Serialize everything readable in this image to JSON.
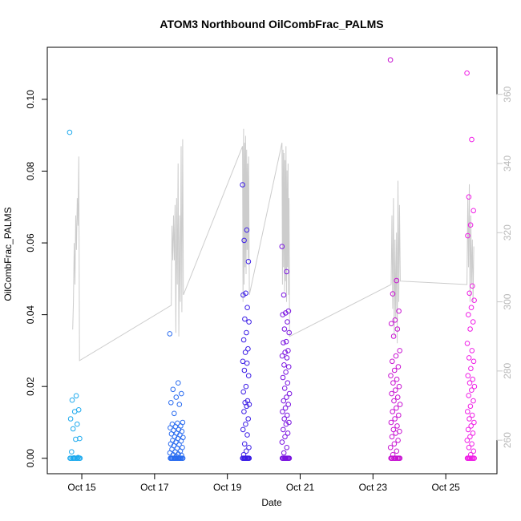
{
  "chart_data": {
    "type": "scatter",
    "title": "ATOM3 Northbound OilCombFrac_PALMS",
    "xlabel": "Date",
    "ylabel": "OilCombFrac_PALMS",
    "xlim": [
      "2017-10-14T01:15",
      "2017-10-26T09:45"
    ],
    "ylim": [
      -0.0043,
      0.1145
    ],
    "x_ticks": [
      {
        "x": "2017-10-15T00:00",
        "label": "Oct 15"
      },
      {
        "x": "2017-10-17T00:00",
        "label": "Oct 17"
      },
      {
        "x": "2017-10-19T00:00",
        "label": "Oct 19"
      },
      {
        "x": "2017-10-21T00:00",
        "label": "Oct 21"
      },
      {
        "x": "2017-10-23T00:00",
        "label": "Oct 23"
      },
      {
        "x": "2017-10-25T00:00",
        "label": "Oct 25"
      }
    ],
    "y_ticks": [
      0.0,
      0.02,
      0.04,
      0.06,
      0.08,
      0.1
    ],
    "y_tick_labels": [
      "0.00",
      "0.02",
      "0.04",
      "0.06",
      "0.08",
      "0.10"
    ],
    "right_axis": {
      "ylim": [
        250.3,
        373.6
      ],
      "ticks": [
        260,
        280,
        300,
        320,
        340,
        360
      ],
      "tick_labels": [
        "260",
        "280",
        "300",
        "320",
        "340",
        "360"
      ],
      "color": "#c8c8c8"
    },
    "grid": false,
    "legend": "none",
    "line_series": {
      "color": "#cccccc",
      "points": [
        [
          "2017-10-14T18:00",
          292
        ],
        [
          "2017-10-14T18:30",
          300
        ],
        [
          "2017-10-14T19:00",
          317
        ],
        [
          "2017-10-14T19:30",
          305
        ],
        [
          "2017-10-14T20:00",
          325
        ],
        [
          "2017-10-14T20:30",
          315
        ],
        [
          "2017-10-14T21:00",
          330
        ],
        [
          "2017-10-14T21:30",
          322
        ],
        [
          "2017-10-14T22:00",
          342
        ],
        [
          "2017-10-14T22:30",
          283
        ],
        [
          "2017-10-17T11:00",
          299
        ],
        [
          "2017-10-17T11:30",
          322
        ],
        [
          "2017-10-17T12:00",
          312
        ],
        [
          "2017-10-17T12:30",
          325
        ],
        [
          "2017-10-17T13:00",
          312
        ],
        [
          "2017-10-17T13:30",
          328
        ],
        [
          "2017-10-17T14:00",
          291
        ],
        [
          "2017-10-17T14:30",
          330
        ],
        [
          "2017-10-17T15:00",
          305
        ],
        [
          "2017-10-17T15:30",
          340
        ],
        [
          "2017-10-17T16:00",
          290
        ],
        [
          "2017-10-17T16:30",
          325
        ],
        [
          "2017-10-17T17:00",
          300
        ],
        [
          "2017-10-17T17:30",
          345
        ],
        [
          "2017-10-17T18:00",
          297
        ],
        [
          "2017-10-17T18:30",
          347
        ],
        [
          "2017-10-17T19:00",
          302
        ],
        [
          "2017-10-19T10:00",
          345
        ],
        [
          "2017-10-19T10:20",
          300
        ],
        [
          "2017-10-19T10:40",
          350
        ],
        [
          "2017-10-19T11:00",
          305
        ],
        [
          "2017-10-19T11:20",
          346
        ],
        [
          "2017-10-19T11:40",
          310
        ],
        [
          "2017-10-19T12:00",
          348
        ],
        [
          "2017-10-19T12:20",
          308
        ],
        [
          "2017-10-19T12:40",
          344
        ],
        [
          "2017-10-19T13:00",
          315
        ],
        [
          "2017-10-19T13:20",
          340
        ],
        [
          "2017-10-19T13:40",
          312
        ],
        [
          "2017-10-19T14:00",
          342
        ],
        [
          "2017-10-19T14:30",
          302
        ],
        [
          "2017-10-20T12:00",
          346
        ],
        [
          "2017-10-20T12:20",
          305
        ],
        [
          "2017-10-20T12:40",
          344
        ],
        [
          "2017-10-20T13:00",
          310
        ],
        [
          "2017-10-20T13:20",
          343
        ],
        [
          "2017-10-20T13:40",
          303
        ],
        [
          "2017-10-20T14:00",
          341
        ],
        [
          "2017-10-20T14:20",
          306
        ],
        [
          "2017-10-20T14:40",
          345
        ],
        [
          "2017-10-20T15:00",
          300
        ],
        [
          "2017-10-20T15:20",
          338
        ],
        [
          "2017-10-20T15:40",
          310
        ],
        [
          "2017-10-20T16:00",
          340
        ],
        [
          "2017-10-20T16:20",
          302
        ],
        [
          "2017-10-20T16:40",
          330
        ],
        [
          "2017-10-20T17:00",
          290
        ],
        [
          "2017-10-23T12:00",
          305
        ],
        [
          "2017-10-23T12:30",
          325
        ],
        [
          "2017-10-23T13:00",
          298
        ],
        [
          "2017-10-23T13:30",
          330
        ],
        [
          "2017-10-23T14:00",
          290
        ],
        [
          "2017-10-23T14:30",
          318
        ],
        [
          "2017-10-23T15:00",
          295
        ],
        [
          "2017-10-23T15:30",
          320
        ],
        [
          "2017-10-23T16:00",
          288
        ],
        [
          "2017-10-23T16:30",
          335
        ],
        [
          "2017-10-23T17:00",
          300
        ],
        [
          "2017-10-23T17:30",
          328
        ],
        [
          "2017-10-23T18:00",
          306
        ],
        [
          "2017-10-25T14:00",
          305
        ],
        [
          "2017-10-25T14:30",
          330
        ],
        [
          "2017-10-25T15:00",
          310
        ],
        [
          "2017-10-25T15:30",
          334
        ],
        [
          "2017-10-25T16:00",
          300
        ],
        [
          "2017-10-25T16:30",
          325
        ],
        [
          "2017-10-25T17:00",
          305
        ],
        [
          "2017-10-25T17:30",
          318
        ],
        [
          "2017-10-25T18:00",
          300
        ],
        [
          "2017-10-25T18:30",
          316
        ]
      ]
    },
    "scatter_groups": [
      {
        "color": "#1eaaee",
        "x_range": [
          "2017-10-14T16:00",
          "2017-10-14T23:00"
        ],
        "values": [
          0.0908,
          0.0174,
          0.0162,
          0.0135,
          0.013,
          0.011,
          0.0095,
          0.0082,
          0.0055,
          0.0053,
          0.0018,
          0.0002,
          0.0001,
          0.0,
          0.0,
          0.0,
          0.0,
          0.0,
          0.0,
          0.0,
          0.0,
          0.0
        ]
      },
      {
        "color": "#2a6cf0",
        "x_range": [
          "2017-10-17T10:00",
          "2017-10-17T19:00"
        ],
        "values": [
          0.0347,
          0.021,
          0.0192,
          0.018,
          0.017,
          0.0155,
          0.015,
          0.0125,
          0.01,
          0.0098,
          0.0095,
          0.009,
          0.0088,
          0.0085,
          0.008,
          0.0078,
          0.0075,
          0.007,
          0.0068,
          0.0065,
          0.006,
          0.0058,
          0.0055,
          0.005,
          0.0048,
          0.0045,
          0.004,
          0.0038,
          0.0035,
          0.003,
          0.0028,
          0.0025,
          0.002,
          0.0018,
          0.0015,
          0.0012,
          0.001,
          0.0008,
          0.0005,
          0.0,
          0.0,
          0.0,
          0.0,
          0.0,
          0.0,
          0.0,
          0.0,
          0.0,
          0.0,
          0.0,
          0.0,
          0.0,
          0.0,
          0.0,
          0.0
        ]
      },
      {
        "color": "#3c1ee6",
        "x_range": [
          "2017-10-19T10:00",
          "2017-10-19T14:30"
        ],
        "values": [
          0.0762,
          0.0636,
          0.0607,
          0.0548,
          0.046,
          0.0455,
          0.042,
          0.0388,
          0.038,
          0.035,
          0.033,
          0.0305,
          0.0295,
          0.027,
          0.0265,
          0.0245,
          0.023,
          0.02,
          0.0185,
          0.016,
          0.0155,
          0.015,
          0.0145,
          0.013,
          0.011,
          0.0095,
          0.008,
          0.0065,
          0.004,
          0.003,
          0.002,
          0.001,
          0.0,
          0.0,
          0.0,
          0.0,
          0.0,
          0.0,
          0.0,
          0.0,
          0.0,
          0.0,
          0.0
        ]
      },
      {
        "color": "#7a14e0",
        "x_range": [
          "2017-10-20T12:00",
          "2017-10-20T17:00"
        ],
        "values": [
          0.059,
          0.052,
          0.0455,
          0.041,
          0.0405,
          0.04,
          0.038,
          0.036,
          0.035,
          0.0325,
          0.0322,
          0.03,
          0.0295,
          0.0285,
          0.028,
          0.026,
          0.0255,
          0.024,
          0.0225,
          0.021,
          0.0195,
          0.018,
          0.017,
          0.016,
          0.015,
          0.014,
          0.013,
          0.012,
          0.011,
          0.01,
          0.0095,
          0.008,
          0.007,
          0.006,
          0.0045,
          0.003,
          0.0015,
          0.0,
          0.0,
          0.0,
          0.0,
          0.0,
          0.0,
          0.0,
          0.0,
          0.0,
          0.0,
          0.0
        ]
      },
      {
        "color": "#c814d2",
        "x_range": [
          "2017-10-23T11:30",
          "2017-10-23T18:00"
        ],
        "values": [
          0.111,
          0.0495,
          0.0458,
          0.041,
          0.0385,
          0.0375,
          0.036,
          0.034,
          0.03,
          0.0285,
          0.027,
          0.0255,
          0.0245,
          0.023,
          0.022,
          0.021,
          0.02,
          0.019,
          0.018,
          0.017,
          0.016,
          0.015,
          0.014,
          0.013,
          0.012,
          0.011,
          0.01,
          0.009,
          0.008,
          0.0075,
          0.007,
          0.006,
          0.005,
          0.004,
          0.003,
          0.002,
          0.001,
          0.0,
          0.0,
          0.0,
          0.0,
          0.0,
          0.0,
          0.0,
          0.0,
          0.0,
          0.0,
          0.0
        ]
      },
      {
        "color": "#f01ee6",
        "x_range": [
          "2017-10-25T14:00",
          "2017-10-25T19:00"
        ],
        "values": [
          0.1073,
          0.0888,
          0.0728,
          0.069,
          0.065,
          0.062,
          0.048,
          0.046,
          0.044,
          0.042,
          0.04,
          0.038,
          0.036,
          0.032,
          0.03,
          0.028,
          0.027,
          0.025,
          0.023,
          0.022,
          0.021,
          0.02,
          0.019,
          0.0175,
          0.016,
          0.0145,
          0.013,
          0.012,
          0.011,
          0.01,
          0.009,
          0.008,
          0.007,
          0.006,
          0.005,
          0.004,
          0.003,
          0.002,
          0.001,
          0.0,
          0.0,
          0.0,
          0.0,
          0.0,
          0.0,
          0.0,
          0.0,
          0.0
        ]
      }
    ]
  }
}
